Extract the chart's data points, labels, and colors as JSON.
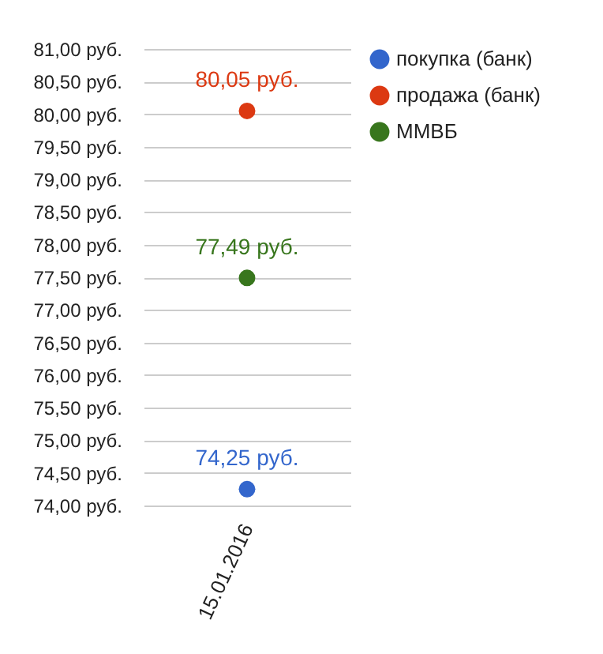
{
  "chart_data": {
    "type": "line",
    "categories": [
      "15.01.2016"
    ],
    "series": [
      {
        "name": "покупка (банк)",
        "color": "#3366cc",
        "values": [
          74.25
        ],
        "value_labels": [
          "74,25 руб."
        ]
      },
      {
        "name": "продажа (банк)",
        "color": "#dc3912",
        "values": [
          80.05
        ],
        "value_labels": [
          "80,05 руб."
        ]
      },
      {
        "name": "ММВБ",
        "color": "#38761d",
        "values": [
          77.49
        ],
        "value_labels": [
          "77,49 руб."
        ]
      }
    ],
    "ylim": [
      74,
      81
    ],
    "yticks": [
      {
        "value": 74,
        "label": "74,00 руб."
      },
      {
        "value": 74.5,
        "label": "74,50 руб."
      },
      {
        "value": 75,
        "label": "75,00 руб."
      },
      {
        "value": 75.5,
        "label": "75,50 руб."
      },
      {
        "value": 76,
        "label": "76,00 руб."
      },
      {
        "value": 76.5,
        "label": "76,50 руб."
      },
      {
        "value": 77,
        "label": "77,00 руб."
      },
      {
        "value": 77.5,
        "label": "77,50 руб."
      },
      {
        "value": 78,
        "label": "78,00 руб."
      },
      {
        "value": 78.5,
        "label": "78,50 руб."
      },
      {
        "value": 79,
        "label": "79,00 руб."
      },
      {
        "value": 79.5,
        "label": "79,50 руб."
      },
      {
        "value": 80,
        "label": "80,00 руб."
      },
      {
        "value": 80.5,
        "label": "80,50 руб."
      },
      {
        "value": 81,
        "label": "81,00 руб."
      }
    ],
    "grid": "y",
    "legend": "top right",
    "marker": "circle"
  }
}
